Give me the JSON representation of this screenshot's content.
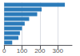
{
  "chart_data": {
    "type": "bar",
    "orientation": "horizontal",
    "values": [
      340,
      210,
      185,
      140,
      115,
      100,
      88,
      80,
      45
    ],
    "color": "#2b7bba",
    "xlim": [
      0,
      380
    ],
    "xticks": [
      0,
      100,
      200,
      300
    ],
    "grid": true,
    "tick_labels": "x"
  }
}
